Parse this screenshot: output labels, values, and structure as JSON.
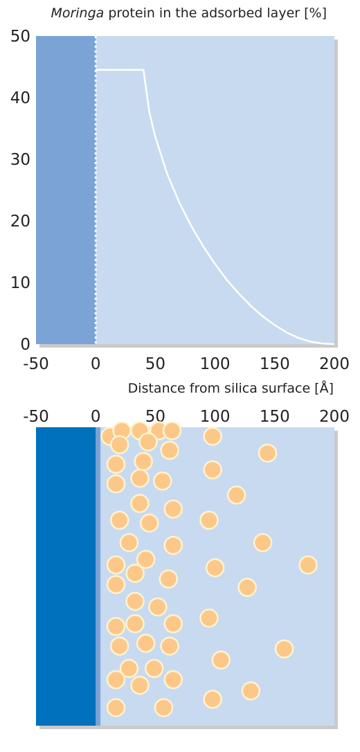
{
  "chart_data": [
    {
      "type": "line",
      "title_italic": "Moringa",
      "title_rest": " protein in the adsorbed layer [%]",
      "xlabel": "Distance from silica surface [Å]",
      "ylabel": "",
      "xlim": [
        -50,
        200
      ],
      "ylim": [
        0,
        50
      ],
      "x_ticks": [
        -50,
        0,
        50,
        100,
        150,
        200
      ],
      "x_tick_labels": [
        "-50",
        "0",
        "50",
        "100",
        "150",
        "200"
      ],
      "y_ticks": [
        0,
        10,
        20,
        30,
        40,
        50
      ],
      "y_tick_labels": [
        "0",
        "10",
        "20",
        "30",
        "40",
        "50"
      ],
      "silica_region": [
        -50,
        0
      ],
      "series": [
        {
          "x": [
            0,
            40,
            45,
            50,
            60,
            70,
            80,
            90,
            100,
            110,
            120,
            130,
            140,
            150,
            160,
            170,
            180,
            190,
            200
          ],
          "y": [
            44.5,
            44.5,
            37.6,
            33.6,
            27.6,
            23.0,
            19.2,
            15.9,
            13.0,
            10.4,
            8.2,
            6.2,
            4.5,
            3.1,
            1.9,
            1.0,
            0.4,
            0.1,
            0
          ]
        }
      ],
      "colors": {
        "silica": "#7ba3d6",
        "solution": "#c8daf0",
        "curve": "#ffffff",
        "boundary": "#ffffff"
      }
    },
    {
      "type": "scatter",
      "title": "",
      "xlim": [
        -50,
        200
      ],
      "x_ticks": [
        -50,
        0,
        50,
        100,
        150,
        200
      ],
      "x_tick_labels": [
        "-50",
        "0",
        "50",
        "100",
        "150",
        "200"
      ],
      "silica_region": [
        -50,
        0
      ],
      "adsorbed_layer": [
        0,
        4
      ],
      "particles": [
        [
          12,
          0.98
        ],
        [
          22,
          1.0
        ],
        [
          37,
          1.0
        ],
        [
          53,
          1.0
        ],
        [
          64,
          1.0
        ],
        [
          98,
          0.98
        ],
        [
          20,
          0.95
        ],
        [
          44,
          0.96
        ],
        [
          62,
          0.93
        ],
        [
          144,
          0.92
        ],
        [
          17,
          0.88
        ],
        [
          40,
          0.89
        ],
        [
          98,
          0.86
        ],
        [
          17,
          0.81
        ],
        [
          37,
          0.83
        ],
        [
          56,
          0.82
        ],
        [
          118,
          0.77
        ],
        [
          37,
          0.74
        ],
        [
          65,
          0.72
        ],
        [
          95,
          0.68
        ],
        [
          20,
          0.68
        ],
        [
          45,
          0.67
        ],
        [
          140,
          0.6
        ],
        [
          28,
          0.6
        ],
        [
          65,
          0.59
        ],
        [
          17,
          0.52
        ],
        [
          42,
          0.54
        ],
        [
          100,
          0.51
        ],
        [
          178,
          0.52
        ],
        [
          33,
          0.49
        ],
        [
          61,
          0.47
        ],
        [
          127,
          0.44
        ],
        [
          17,
          0.45
        ],
        [
          33,
          0.39
        ],
        [
          52,
          0.37
        ],
        [
          17,
          0.3
        ],
        [
          33,
          0.31
        ],
        [
          65,
          0.31
        ],
        [
          95,
          0.33
        ],
        [
          42,
          0.24
        ],
        [
          62,
          0.23
        ],
        [
          20,
          0.23
        ],
        [
          158,
          0.22
        ],
        [
          28,
          0.15
        ],
        [
          49,
          0.15
        ],
        [
          105,
          0.18
        ],
        [
          17,
          0.11
        ],
        [
          37,
          0.09
        ],
        [
          65,
          0.11
        ],
        [
          17,
          0.01
        ],
        [
          57,
          0.01
        ],
        [
          98,
          0.04
        ],
        [
          130,
          0.07
        ]
      ],
      "colors": {
        "silica": "#0071bc",
        "adsorbed": "#7ba3d6",
        "solution": "#c8daf0",
        "particle": "#fcc88a",
        "particle_edge": "#fff3cf"
      }
    }
  ]
}
